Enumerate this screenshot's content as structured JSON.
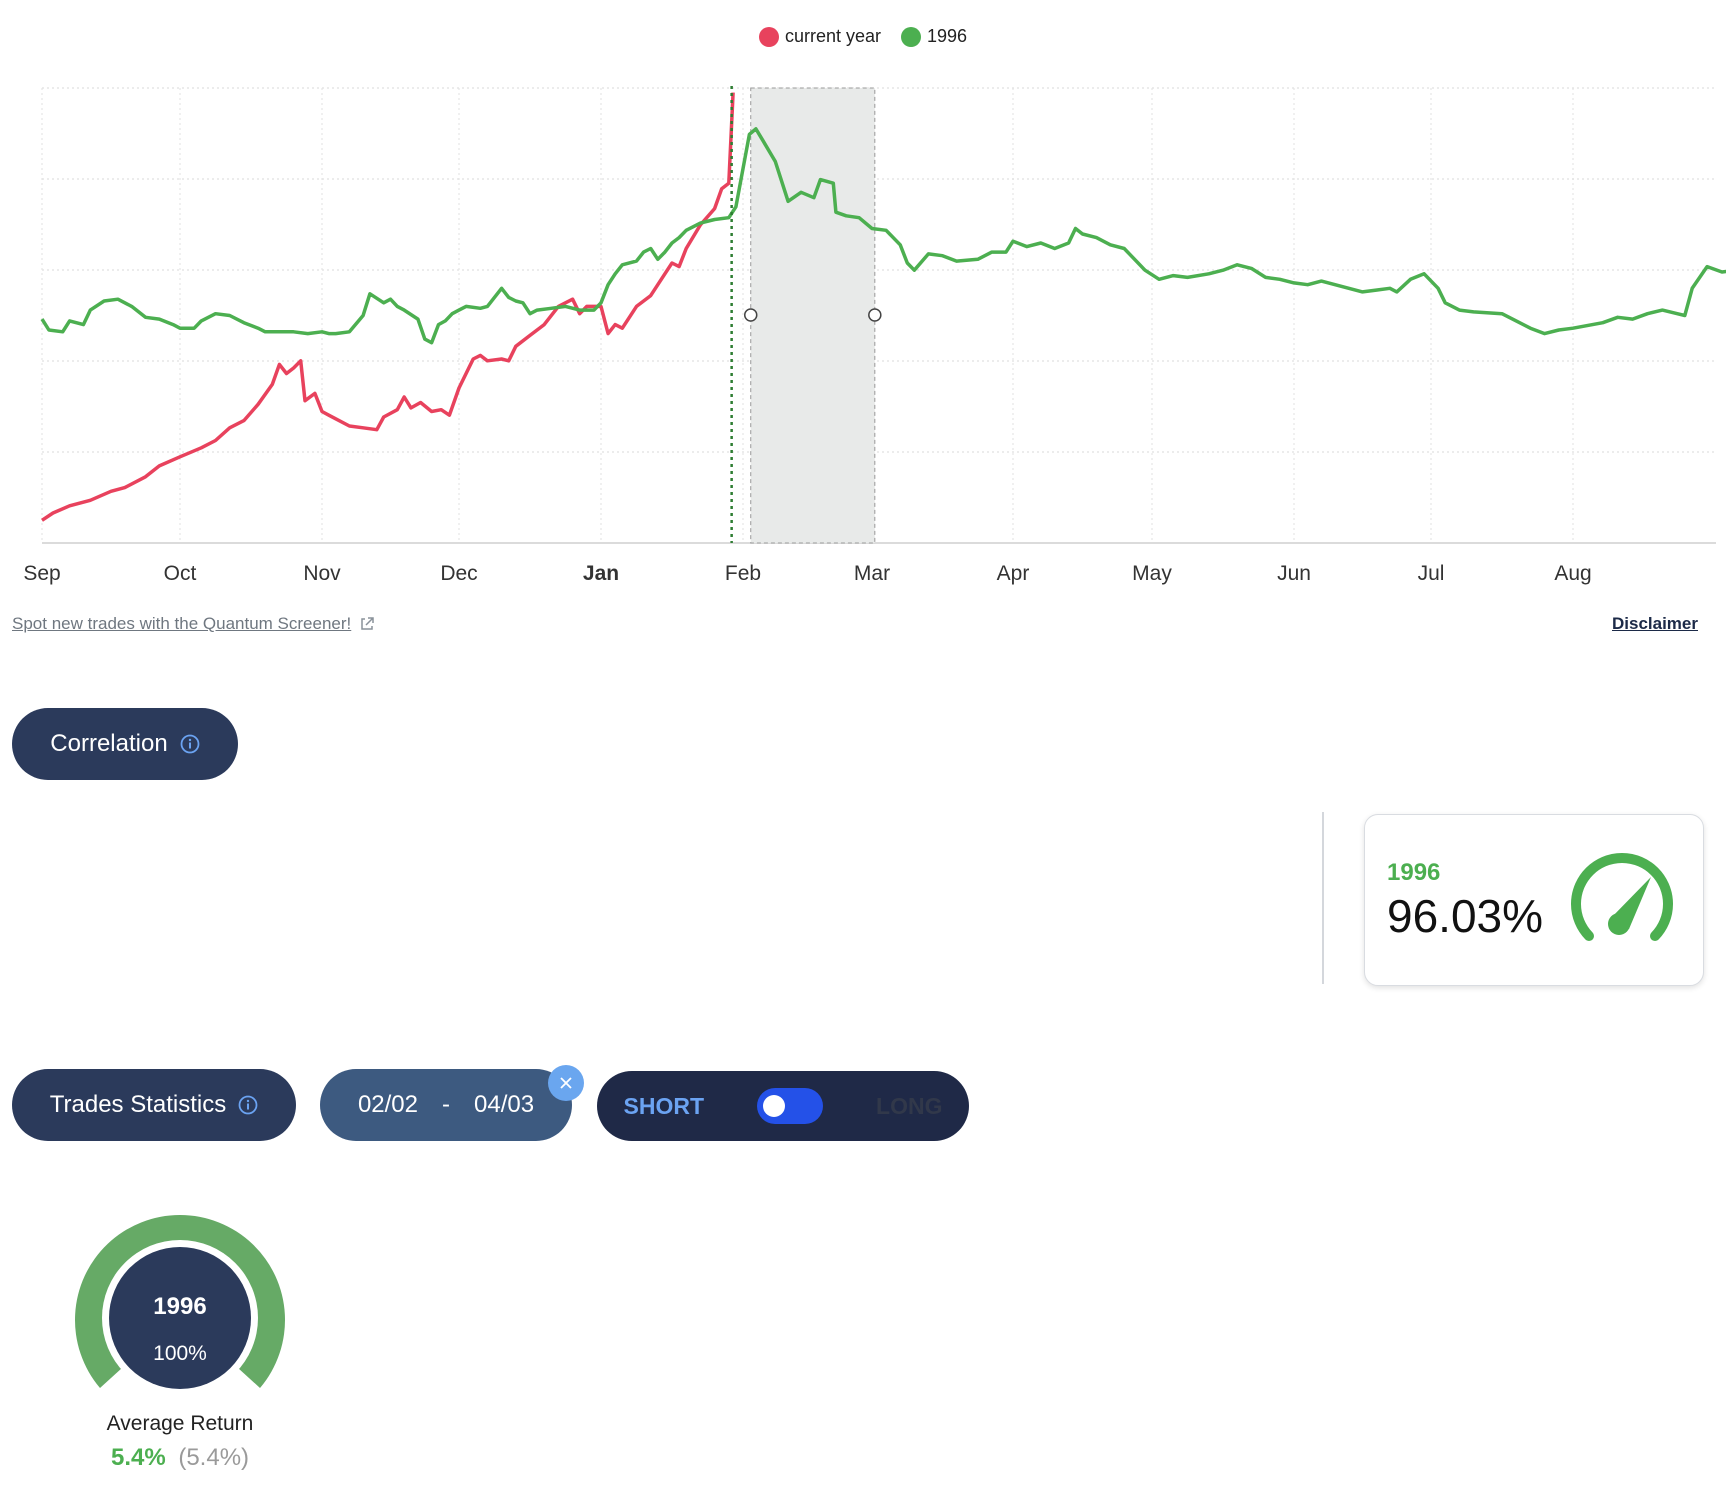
{
  "legend": [
    {
      "label": "current year",
      "color": "#e8425d"
    },
    {
      "label": "1996",
      "color": "#4caf50"
    }
  ],
  "chart_data": {
    "type": "line",
    "x_ticks": [
      "Sep",
      "Oct",
      "Nov",
      "Dec",
      "Jan",
      "Feb",
      "Mar",
      "Apr",
      "May",
      "Jun",
      "Jul",
      "Aug"
    ],
    "x_tick_bold": "Jan",
    "series": [
      {
        "name": "current year",
        "color": "#e8425d",
        "points": [
          [
            0.0,
            12
          ],
          [
            0.08,
            16
          ],
          [
            0.2,
            20
          ],
          [
            0.35,
            23
          ],
          [
            0.5,
            28
          ],
          [
            0.6,
            30
          ],
          [
            0.75,
            36
          ],
          [
            0.85,
            42
          ],
          [
            1.0,
            47
          ],
          [
            1.15,
            52
          ],
          [
            1.25,
            56
          ],
          [
            1.35,
            63
          ],
          [
            1.45,
            67
          ],
          [
            1.55,
            76
          ],
          [
            1.65,
            87
          ],
          [
            1.7,
            98
          ],
          [
            1.75,
            93
          ],
          [
            1.8,
            96
          ],
          [
            1.85,
            100
          ],
          [
            1.88,
            78
          ],
          [
            1.95,
            82
          ],
          [
            2.0,
            72
          ],
          [
            2.05,
            70
          ],
          [
            2.1,
            68
          ],
          [
            2.2,
            64
          ],
          [
            2.3,
            63
          ],
          [
            2.4,
            62
          ],
          [
            2.45,
            69
          ],
          [
            2.55,
            73
          ],
          [
            2.6,
            80
          ],
          [
            2.65,
            74
          ],
          [
            2.72,
            77
          ],
          [
            2.8,
            72
          ],
          [
            2.87,
            73
          ],
          [
            2.93,
            70
          ],
          [
            3.0,
            85
          ],
          [
            3.05,
            93
          ],
          [
            3.1,
            101
          ],
          [
            3.15,
            103
          ],
          [
            3.2,
            100
          ],
          [
            3.3,
            101
          ],
          [
            3.35,
            100
          ],
          [
            3.4,
            108
          ],
          [
            3.5,
            114
          ],
          [
            3.6,
            120
          ],
          [
            3.7,
            130
          ],
          [
            3.8,
            134
          ],
          [
            3.85,
            126
          ],
          [
            3.9,
            130
          ],
          [
            4.0,
            130
          ],
          [
            4.05,
            115
          ],
          [
            4.1,
            120
          ],
          [
            4.15,
            118
          ],
          [
            4.25,
            130
          ],
          [
            4.35,
            136
          ],
          [
            4.45,
            148
          ],
          [
            4.5,
            154
          ],
          [
            4.55,
            152
          ],
          [
            4.6,
            162
          ],
          [
            4.7,
            175
          ],
          [
            4.8,
            184
          ],
          [
            4.85,
            195
          ],
          [
            4.9,
            198
          ],
          [
            4.93,
            248
          ]
        ]
      },
      {
        "name": "1996",
        "color": "#4caf50",
        "points": [
          [
            0.0,
            123
          ],
          [
            0.05,
            117
          ],
          [
            0.15,
            116
          ],
          [
            0.2,
            122
          ],
          [
            0.3,
            120
          ],
          [
            0.35,
            128
          ],
          [
            0.45,
            133
          ],
          [
            0.55,
            134
          ],
          [
            0.65,
            130
          ],
          [
            0.75,
            124
          ],
          [
            0.85,
            123
          ],
          [
            0.95,
            120
          ],
          [
            1.0,
            118
          ],
          [
            1.1,
            118
          ],
          [
            1.15,
            122
          ],
          [
            1.25,
            126
          ],
          [
            1.35,
            125
          ],
          [
            1.45,
            121
          ],
          [
            1.55,
            118
          ],
          [
            1.6,
            116
          ],
          [
            1.7,
            116
          ],
          [
            1.8,
            116
          ],
          [
            1.9,
            115
          ],
          [
            2.0,
            116
          ],
          [
            2.05,
            115
          ],
          [
            2.1,
            115
          ],
          [
            2.2,
            116
          ],
          [
            2.3,
            125
          ],
          [
            2.35,
            137
          ],
          [
            2.45,
            132
          ],
          [
            2.5,
            134
          ],
          [
            2.55,
            130
          ],
          [
            2.6,
            128
          ],
          [
            2.7,
            123
          ],
          [
            2.75,
            112
          ],
          [
            2.8,
            110
          ],
          [
            2.85,
            120
          ],
          [
            2.9,
            122
          ],
          [
            2.95,
            126
          ],
          [
            3.0,
            128
          ],
          [
            3.05,
            130
          ],
          [
            3.15,
            129
          ],
          [
            3.2,
            130
          ],
          [
            3.3,
            140
          ],
          [
            3.35,
            135
          ],
          [
            3.4,
            133
          ],
          [
            3.45,
            132
          ],
          [
            3.5,
            126
          ],
          [
            3.55,
            128
          ],
          [
            3.65,
            129
          ],
          [
            3.75,
            130
          ],
          [
            3.85,
            128
          ],
          [
            3.95,
            128
          ],
          [
            4.0,
            132
          ],
          [
            4.05,
            142
          ],
          [
            4.1,
            148
          ],
          [
            4.15,
            153
          ],
          [
            4.25,
            155
          ],
          [
            4.3,
            160
          ],
          [
            4.35,
            162
          ],
          [
            4.4,
            156
          ],
          [
            4.45,
            160
          ],
          [
            4.5,
            165
          ],
          [
            4.55,
            168
          ],
          [
            4.6,
            172
          ],
          [
            4.7,
            176
          ],
          [
            4.8,
            178
          ],
          [
            4.9,
            179
          ],
          [
            4.95,
            185
          ],
          [
            5.0,
            206
          ],
          [
            5.05,
            225
          ],
          [
            5.1,
            228
          ],
          [
            5.15,
            222
          ],
          [
            5.25,
            210
          ],
          [
            5.35,
            188
          ],
          [
            5.45,
            193
          ],
          [
            5.55,
            190
          ],
          [
            5.6,
            200
          ],
          [
            5.7,
            198
          ],
          [
            5.72,
            182
          ],
          [
            5.8,
            180
          ],
          [
            5.9,
            179
          ],
          [
            6.0,
            173
          ],
          [
            6.1,
            172
          ],
          [
            6.2,
            164
          ],
          [
            6.25,
            154
          ],
          [
            6.3,
            150
          ],
          [
            6.4,
            159
          ],
          [
            6.5,
            158
          ],
          [
            6.6,
            155
          ],
          [
            6.75,
            156
          ],
          [
            6.85,
            160
          ],
          [
            6.95,
            160
          ],
          [
            7.0,
            166
          ],
          [
            7.1,
            163
          ],
          [
            7.2,
            165
          ],
          [
            7.3,
            162
          ],
          [
            7.4,
            165
          ],
          [
            7.45,
            173
          ],
          [
            7.5,
            170
          ],
          [
            7.6,
            168
          ],
          [
            7.7,
            164
          ],
          [
            7.8,
            162
          ],
          [
            7.85,
            158
          ],
          [
            7.95,
            150
          ],
          [
            8.05,
            145
          ],
          [
            8.15,
            147
          ],
          [
            8.25,
            146
          ],
          [
            8.4,
            148
          ],
          [
            8.5,
            150
          ],
          [
            8.6,
            153
          ],
          [
            8.7,
            151
          ],
          [
            8.8,
            146
          ],
          [
            8.9,
            145
          ],
          [
            9.0,
            143
          ],
          [
            9.1,
            142
          ],
          [
            9.2,
            144
          ],
          [
            9.3,
            142
          ],
          [
            9.5,
            138
          ],
          [
            9.6,
            139
          ],
          [
            9.7,
            140
          ],
          [
            9.75,
            138
          ],
          [
            9.85,
            145
          ],
          [
            9.95,
            148
          ],
          [
            10.05,
            140
          ],
          [
            10.1,
            132
          ],
          [
            10.2,
            128
          ],
          [
            10.3,
            127
          ],
          [
            10.5,
            126
          ],
          [
            10.6,
            122
          ],
          [
            10.7,
            118
          ],
          [
            10.8,
            115
          ],
          [
            10.9,
            117
          ],
          [
            11.0,
            118
          ],
          [
            11.2,
            121
          ],
          [
            11.3,
            124
          ],
          [
            11.4,
            123
          ],
          [
            11.5,
            126
          ],
          [
            11.6,
            128
          ],
          [
            11.7,
            126
          ],
          [
            11.75,
            125
          ],
          [
            11.8,
            140
          ],
          [
            11.9,
            152
          ],
          [
            12.0,
            149
          ],
          [
            12.1,
            150
          ],
          [
            12.2,
            146
          ],
          [
            12.3,
            145
          ],
          [
            12.45,
            148
          ],
          [
            12.55,
            152
          ],
          [
            12.65,
            149
          ],
          [
            12.75,
            146
          ],
          [
            12.82,
            146
          ]
        ]
      }
    ],
    "highlight_range": [
      5.06,
      6.02
    ],
    "current_marker_x": 4.92,
    "ylim": [
      0,
      250
    ],
    "grid": true
  },
  "links": {
    "promo": "Spot new trades with the Quantum Screener!",
    "disclaimer": "Disclaimer"
  },
  "correlation": {
    "label": "Correlation",
    "year": "1996",
    "value": "96.03%",
    "gauge_level": 0.96
  },
  "trades": {
    "label": "Trades Statistics",
    "date_from": "02/02",
    "date_sep": "-",
    "date_to": "04/03",
    "toggle_short": "SHORT",
    "toggle_long": "LONG"
  },
  "average_return": {
    "year": "1996",
    "percent": "100%",
    "label": "Average Return",
    "value": "5.4%",
    "value_sub": "(5.4%)",
    "gauge_level": 1.0
  },
  "colors": {
    "navy": "#2b3a5b",
    "green": "#4caf50",
    "red": "#e8425d"
  }
}
